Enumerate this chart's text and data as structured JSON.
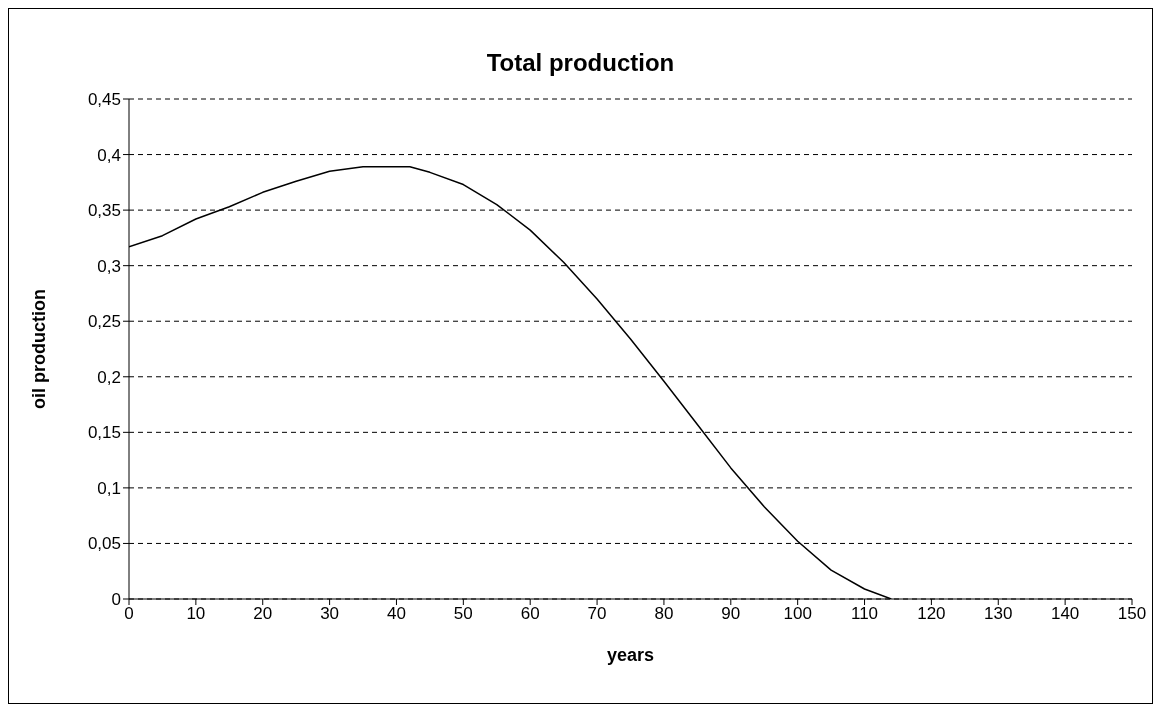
{
  "chart_data": {
    "type": "line",
    "title": "Total production",
    "xlabel": "years",
    "ylabel": "oil production",
    "x": [
      0,
      5,
      10,
      15,
      20,
      25,
      30,
      35,
      40,
      42,
      45,
      50,
      55,
      60,
      65,
      70,
      75,
      80,
      85,
      90,
      95,
      100,
      105,
      110,
      114
    ],
    "series": [
      {
        "color": "#000000",
        "values": [
          0.317,
          0.327,
          0.342,
          0.353,
          0.366,
          0.376,
          0.385,
          0.389,
          0.389,
          0.389,
          0.384,
          0.373,
          0.355,
          0.332,
          0.303,
          0.27,
          0.234,
          0.196,
          0.157,
          0.118,
          0.083,
          0.052,
          0.026,
          0.009,
          0
        ]
      }
    ],
    "xlim": [
      0,
      150
    ],
    "xticks": [
      0,
      10,
      20,
      30,
      40,
      50,
      60,
      70,
      80,
      90,
      100,
      110,
      120,
      130,
      140,
      150
    ],
    "ylim": [
      0,
      0.45
    ],
    "yticks": [
      0,
      {
        "value": 0.05,
        "label": "0,05"
      },
      {
        "value": 0.1,
        "label": "0,1"
      },
      {
        "value": 0.15,
        "label": "0,15"
      },
      {
        "value": 0.2,
        "label": "0,2"
      },
      {
        "value": 0.25,
        "label": "0,25"
      },
      {
        "value": 0.3,
        "label": "0,3"
      },
      {
        "value": 0.35,
        "label": "0,35"
      },
      {
        "value": 0.4,
        "label": "0,4"
      },
      {
        "value": 0.45,
        "label": "0,45"
      }
    ],
    "grid": "y",
    "marker": "none",
    "line_style": "solid"
  }
}
